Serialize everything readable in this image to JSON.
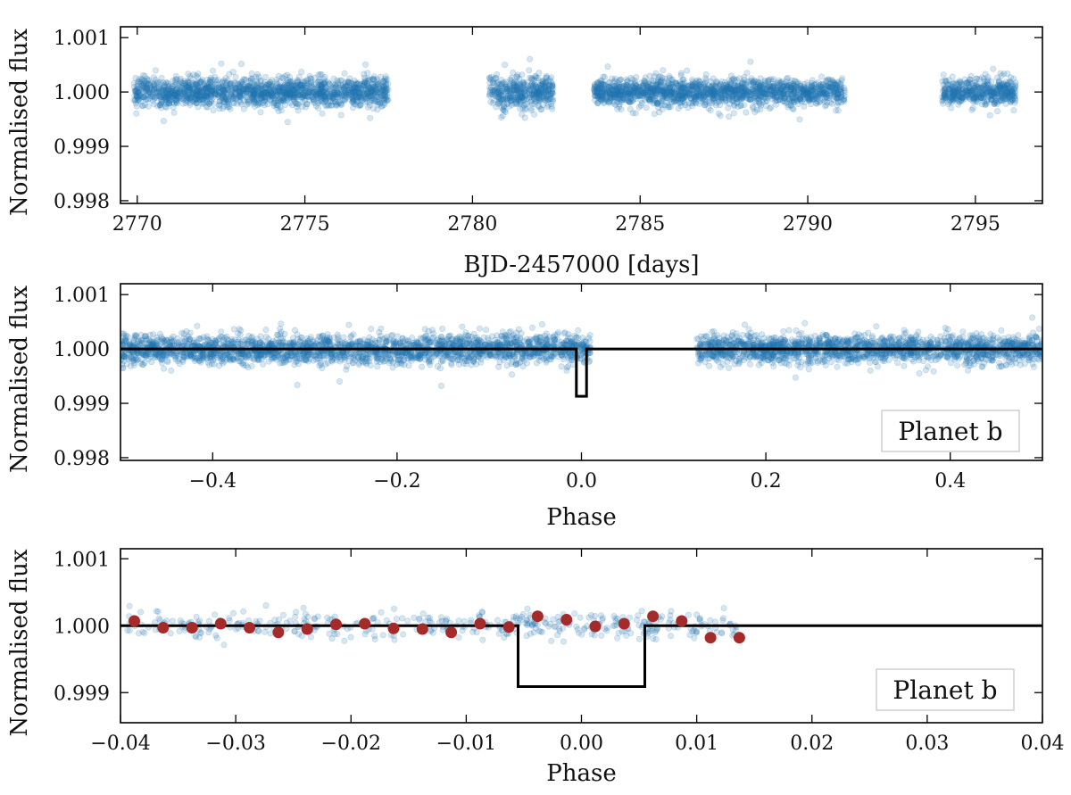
{
  "chart_data": [
    {
      "type": "scatter",
      "id": "timeseries",
      "xlabel": "BJD-2457000 [days]",
      "ylabel": "Normalised flux",
      "xlim": [
        2769.5,
        2797.0
      ],
      "ylim": [
        0.99795,
        1.0012
      ],
      "xticks": [
        2770,
        2775,
        2780,
        2785,
        2790,
        2795
      ],
      "xtick_labels": [
        "2770",
        "2775",
        "2780",
        "2785",
        "2790",
        "2795"
      ],
      "yticks": [
        0.998,
        0.999,
        1.0,
        1.001
      ],
      "ytick_labels": [
        "0.998",
        "0.999",
        "1.000",
        "1.001"
      ],
      "segments": [
        {
          "x_start": 2769.9,
          "x_end": 2777.5,
          "center": 1.0,
          "spread": 0.00024
        },
        {
          "x_start": 2780.5,
          "x_end": 2782.4,
          "center": 1.0,
          "spread": 0.00028
        },
        {
          "x_start": 2783.6,
          "x_end": 2791.1,
          "center": 1.0,
          "spread": 0.00022
        },
        {
          "x_start": 2794.0,
          "x_end": 2796.2,
          "center": 1.0,
          "spread": 0.00022
        }
      ],
      "scatter_color": "#1f77b4"
    },
    {
      "type": "scatter",
      "id": "phase-full",
      "xlabel": "Phase",
      "ylabel": "Normalised flux",
      "xlim": [
        -0.5,
        0.5
      ],
      "ylim": [
        0.99795,
        1.0012
      ],
      "xticks": [
        -0.4,
        -0.2,
        0.0,
        0.2,
        0.4
      ],
      "xtick_labels": [
        "−0.4",
        "−0.2",
        "0.0",
        "0.2",
        "0.4"
      ],
      "yticks": [
        0.998,
        0.999,
        1.0,
        1.001
      ],
      "ytick_labels": [
        "0.998",
        "0.999",
        "1.000",
        "1.001"
      ],
      "segments": [
        {
          "x_start": -0.5,
          "x_end": 0.01,
          "center": 1.0,
          "spread": 0.00024
        },
        {
          "x_start": 0.125,
          "x_end": 0.5,
          "center": 1.0,
          "spread": 0.00024
        }
      ],
      "model": {
        "x": [
          -0.5,
          -0.0055,
          -0.0055,
          0.0055,
          0.0055,
          0.5
        ],
        "y": [
          1.0,
          1.0,
          0.99913,
          0.99913,
          1.0,
          1.0
        ]
      },
      "legend": "Planet b",
      "scatter_color": "#1f77b4"
    },
    {
      "type": "scatter",
      "id": "phase-zoom",
      "xlabel": "Phase",
      "ylabel": "Normalised flux",
      "xlim": [
        -0.04,
        0.04
      ],
      "ylim": [
        0.99855,
        1.00115
      ],
      "xticks": [
        -0.04,
        -0.03,
        -0.02,
        -0.01,
        0.0,
        0.01,
        0.02,
        0.03,
        0.04
      ],
      "xtick_labels": [
        "−0.04",
        "−0.03",
        "−0.02",
        "−0.01",
        "0.00",
        "0.01",
        "0.02",
        "0.03",
        "0.04"
      ],
      "yticks": [
        0.999,
        1.0,
        1.001
      ],
      "ytick_labels": [
        "0.999",
        "1.000",
        "1.001"
      ],
      "segments": [
        {
          "x_start": -0.0395,
          "x_end": 0.0135,
          "center": 1.0,
          "spread": 0.00018
        }
      ],
      "binned": {
        "x": [
          -0.0388,
          -0.0363,
          -0.0338,
          -0.0313,
          -0.0288,
          -0.0263,
          -0.0238,
          -0.0213,
          -0.0188,
          -0.0163,
          -0.0138,
          -0.0113,
          -0.0088,
          -0.0063,
          -0.0038,
          -0.0013,
          0.0012,
          0.0037,
          0.0062,
          0.0087,
          0.0112,
          0.0137
        ],
        "y": [
          1.00007,
          0.99997,
          0.99997,
          1.00003,
          0.99997,
          0.9999,
          0.99995,
          1.00002,
          1.00003,
          0.99996,
          0.99995,
          0.9999,
          1.00003,
          0.99998,
          1.00014,
          1.00009,
          0.99999,
          1.00003,
          1.00014,
          1.00007,
          0.99982,
          0.99982
        ]
      },
      "binned_color": "#a52a2a",
      "model": {
        "x": [
          -0.04,
          -0.0055,
          -0.0055,
          0.0055,
          0.0055,
          0.04
        ],
        "y": [
          1.0,
          1.0,
          0.99909,
          0.99909,
          1.0,
          1.0
        ]
      },
      "legend": "Planet b",
      "scatter_color": "#1f77b4"
    }
  ]
}
